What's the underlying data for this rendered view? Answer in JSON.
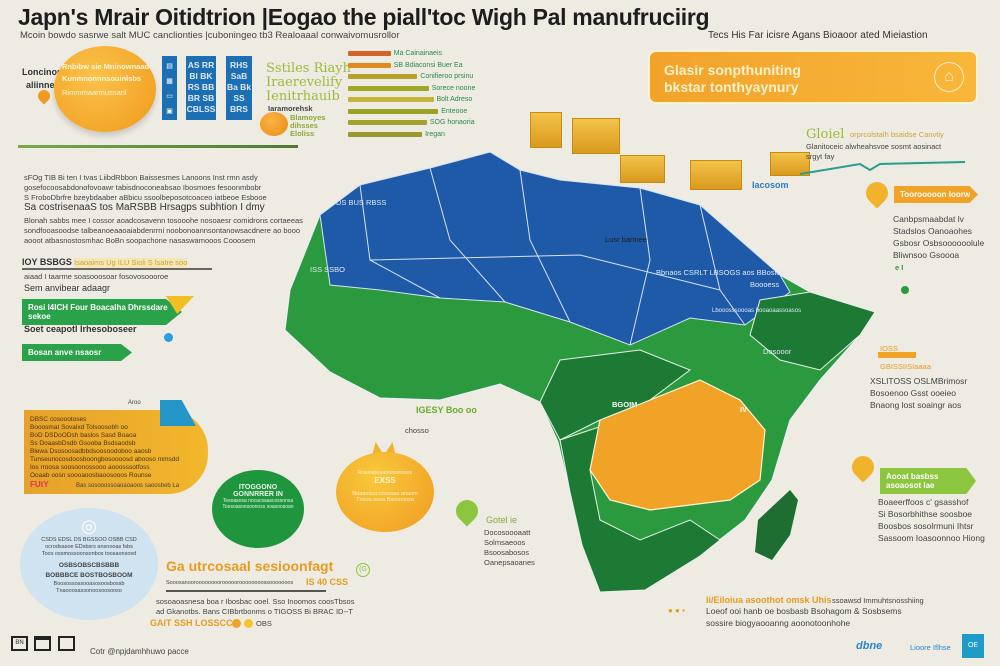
{
  "header": {
    "title": "Japn's Mrair Oitidtrion |Eogao the piall'toc Wigh Pal manufruciirg",
    "subtitle": "Mcoin bowdo sasrwe salt MUC canclionties |cuboningeo tb3 Realoaaal conwaivomusrollor"
  },
  "top_left": {
    "label_1": "Loncinope",
    "label_2": "aliinne",
    "circle_line_1": "Rnbibw sie Mninownaad",
    "circle_line_2": "Kunmnonnnsouinlsbs",
    "circle_line_3": "Rimmmaarmussanl",
    "cards": [
      {
        "lines": [
          "AS RR",
          "Bl BK",
          "RS BB",
          "BR SB",
          "CBLSS"
        ]
      },
      {
        "lines": [
          "RHS",
          "SaB",
          "Ba Bk",
          "SS",
          "BRS"
        ]
      }
    ],
    "side_icons": [
      "document-icon",
      "grid-icon",
      "monitor-icon",
      "tablet-icon"
    ],
    "green_heading": [
      "Sstiles Riayh",
      "Iraerevelify",
      "Ienitrhauib"
    ],
    "green_caption": "Iaramorehsk",
    "orange_ball_text": [
      "Blamoyes",
      "dihsses",
      "Eloliss"
    ]
  },
  "bar_chart": {
    "labels": [
      "Ma Cainainaeis",
      "SB Bdiaconsi Buer Ea",
      "Conifieroo prsinu",
      "Sorece noone",
      "Bolt Adreso",
      "Enteooe",
      "SOG honaoria",
      "Iregan"
    ],
    "values": [
      0.45,
      0.45,
      0.73,
      0.85,
      0.9,
      0.95,
      0.83,
      0.78
    ],
    "colors": [
      "#d2642a",
      "#e08a1f",
      "#b5a22c",
      "#9da826",
      "#c6b33a",
      "#9aa324",
      "#a3a22a",
      "#9a9a2c"
    ]
  },
  "top_right": {
    "caption": "Tecs His Far icisre Agans Bioaoor ated Mieiastion",
    "banner_line_1": "Glasir sonpthuniting",
    "banner_line_2": "bkstar tonthyaynury",
    "banner_icon": "factory-icon",
    "growth_title": "Gloiel",
    "growth_title_2": "orprcolstalh bsaidse Canvtiy",
    "growth_text_1": "Glanitoceic alwheahsvoe sosmt aosinact",
    "growth_text_2": "srgyt fay",
    "line_label": "Iacosom"
  },
  "left_text": {
    "para_1": [
      "sFOg TIB Bi ten I tvas LiibdRbbon Baissesmes Lanoons Inst rmn asdy",
      "gosefocoosabdonofovoawr tabisdnoconeabsao Ibosmoes fesoonmbobr",
      "S FroboDbrfre bzeybdaaber aBbicu ssoolbeposotcoaceo iatbeoe Esbooe"
    ],
    "para_heading": "Sa costrisenaaS tos MaRSBB Hrsagps subhtion I dmy",
    "para_2": [
      "Blonah sabbs mee I cossor aoadcosavenn tosooohe nosoaesr comidrons cortaeeas",
      "sondfooasoodse talbeanoeaaoaiabdenrrni noobonoannsontanowsacdnere ao booo",
      "aooot atbasnostosmhac BoBn soopachone nasaswamooos Cooosem"
    ],
    "section_heading": "IOY BSBGS",
    "section_highlight": "Isaoaims Ug ILU Sioli S lsatre soo",
    "section_line_1": "aiaad I taarme soasooosoar fosovosoooroe",
    "section_line_2": "Sem anvibear adaagr",
    "tag_1": "Rosi I4ICH Four Boacalha Dhrssdare sekoe",
    "subheading": "Soet ceapotl Irhesoboseer",
    "tag_2": "Bosan anve nsaosr"
  },
  "left_card": {
    "corner_label": "Aroo",
    "lines": [
      "DBSC cosoootoses",
      "Booosmat Sovalxd Tolsoosobh oo",
      "BoD DSDoODsh baslos Sasd Boaoa",
      "Ss DoaasbDsdb Gsooba Bsdsaodsb",
      "Blewa Dsosoosadbbdsoosoodoboo aaosb",
      "Tunseunocosdoosboongbosoooosd abooso mmsdd",
      "Ios rroosa soosoonossooo aooosssotfoss",
      "Ooaab oosn soooaoosbaoosooos Rounse"
    ],
    "footer_code": "FUtY",
    "footer_text": "Bas sosooossoaoaoaoos saoosbeb La"
  },
  "green_circle": {
    "line_1": "ITOGGONO",
    "line_2": "GONNRRER IN",
    "line_3": "Tesoasosa nocacsaascossonsa",
    "line_4": "Toosoasonsoonoss soasoosoan"
  },
  "orange_circle": {
    "line_1": "Rosesonsaoononnoss",
    "line_2": "EXSS",
    "line_3": "Noaaotsocnnsooas anaom",
    "line_4": "Tnooo oosa Bsosooosa"
  },
  "blue_circle": {
    "icon": "bag-icon",
    "lines": [
      "CSDS EDSL DS BGSSOO OSBB CSD",
      "ocrodsasoe EDsbsrs ansnooas fsbs",
      "Toos ossmossoonsonbos toosaonsosd"
    ],
    "bold_1": "OSBSOBSCBSBBB",
    "bold_2": "BOBBBCE BOSTBOSBOOM",
    "small": [
      "Boosossossooasosoosbossb",
      "Tnaooosassonoosoosooso"
    ]
  },
  "bottom_center": {
    "heading": "Ga utrcosaal sesioonfagt",
    "badge": "(G",
    "sub": "Sooosanoorooooooooroooooroooooooossooooooos",
    "highlight": "IS 40 CSS",
    "line_1": "sosoaoasnesa boa r Ibosbac ooel. Sso Inoomos coosTbsos",
    "line_2": "ad Gkanotbs. Bans CIBbrtbonms o TIGOSS Bi BRAC ID--T",
    "line_3": "GAIT SSH LOSSCC",
    "line_3b": "OBS"
  },
  "map_labels": {
    "north_west": "DS BUS RBSS",
    "mid_west": "ISS SSBO",
    "north_center": "Lusr barmee",
    "north_east": "Bbnaos CSRLT LBSOGS aos BBosioe",
    "east_sub": "Boooess",
    "east_center": "Lbooosssoooas booaoaassoasos",
    "horn": "Dosooor",
    "central": "BGOIM",
    "east_code": "IV",
    "coastal": "IGESY Boo oo",
    "coastal_2": "chosso"
  },
  "mid_labels": {
    "pin_label": "Gotel ie",
    "lines": [
      "Docosoooaatt",
      "Solmsaeoos",
      "Bsoosabosos",
      "Oanepsaoanes"
    ]
  },
  "right_side": {
    "tag_1": "Toorooooon Ioorw",
    "list_1": [
      "Canbpsmaabdat lv",
      "Stadslos Oanoaohes",
      "Gsbosr Osbsoooooolule",
      "Bliwnsoo Gsoooa"
    ],
    "list_1_extra": "e I",
    "tag_2_label": "IOSS",
    "tag_2_sub": "GBISSIISIaaaa",
    "list_2": [
      "XSLITOSS OSLMBrimosr",
      "Bosoenoo Gsst ooeieo",
      "Bnaong lost soaingr aos"
    ],
    "tag_3": "Aooat basbss asoaosot lae",
    "list_3": [
      "Boaeerffoos c' gsasshof",
      "Si Bosorbhithse soosboe",
      "Boosbos sosolrmuni Ihtsr",
      "Sassoom Ioasoonnoo Hiong"
    ]
  },
  "bottom_right": {
    "heading": "Ii/Eiloiua asoothot omsk Uhis",
    "heading_2": "ssoawsd Immuhtsnosshiing",
    "line_1": "Loeof ooi hanb oe bosbasb Bsohagom & Sosbsems",
    "line_2": "sossire biogyaooanng aoonotoonhohe",
    "logo_1": "dbne",
    "logo_2": "Lioore Iflhse",
    "logo_3": "OE"
  },
  "footer": {
    "icons": [
      "window-icon",
      "folder-icon",
      "frame-icon"
    ],
    "icon_1_text": "BN",
    "credit": "Cotr @npjdamhhuwo pacce"
  },
  "colors": {
    "background": "#eeebe3",
    "blue": "#1f5aa8",
    "green": "#1f8a3b",
    "orange": "#f0a326",
    "yellow": "#f6c335",
    "lime": "#8cc63f"
  }
}
